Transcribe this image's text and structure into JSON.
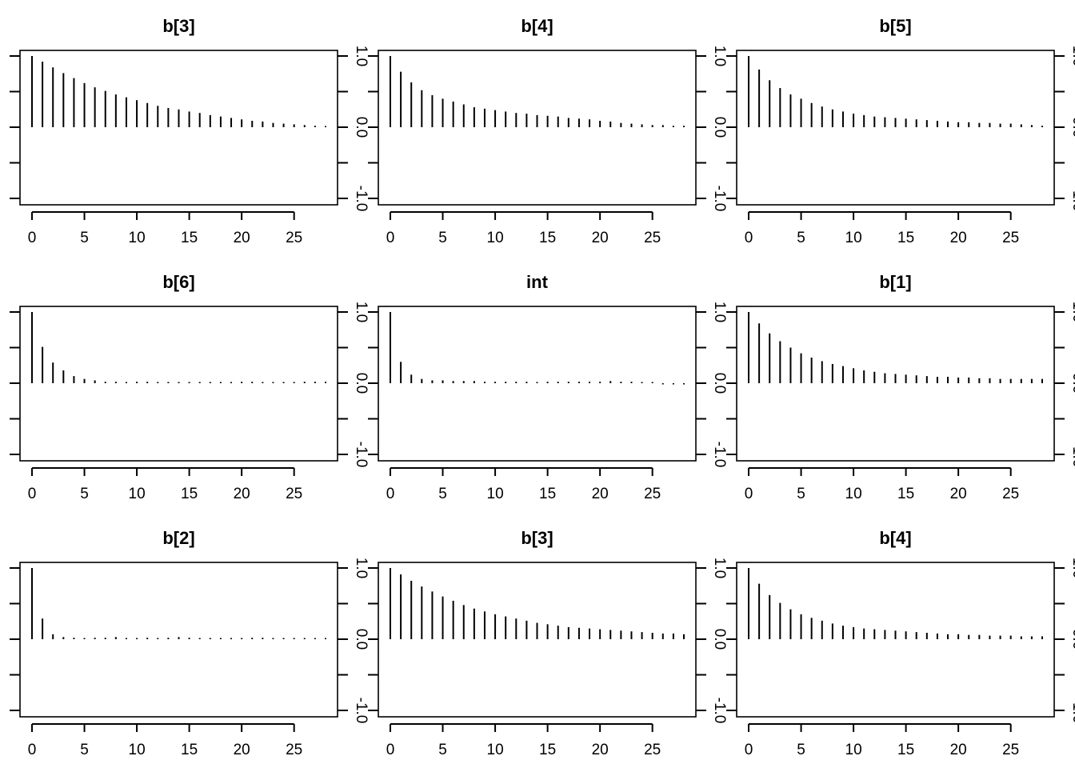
{
  "chart_data": [
    {
      "type": "bar",
      "title": "b[3]",
      "xlim": [
        0,
        28
      ],
      "ylim": [
        -1,
        1
      ],
      "xticks": [
        "0",
        "5",
        "10",
        "15",
        "20",
        "25"
      ],
      "yticks": [
        "-1.0",
        "0.0",
        "1.0"
      ],
      "x": [
        0,
        1,
        2,
        3,
        4,
        5,
        6,
        7,
        8,
        9,
        10,
        11,
        12,
        13,
        14,
        15,
        16,
        17,
        18,
        19,
        20,
        21,
        22,
        23,
        24,
        25,
        26,
        27,
        28
      ],
      "values": [
        1.0,
        0.92,
        0.84,
        0.76,
        0.69,
        0.62,
        0.56,
        0.51,
        0.46,
        0.42,
        0.38,
        0.34,
        0.3,
        0.27,
        0.25,
        0.22,
        0.2,
        0.17,
        0.15,
        0.13,
        0.11,
        0.09,
        0.08,
        0.06,
        0.05,
        0.04,
        0.03,
        0.02,
        0.01
      ]
    },
    {
      "type": "bar",
      "title": "b[4]",
      "xlim": [
        0,
        28
      ],
      "ylim": [
        -1,
        1
      ],
      "xticks": [
        "0",
        "5",
        "10",
        "15",
        "20",
        "25"
      ],
      "yticks": [
        "-1.0",
        "0.0",
        "1.0"
      ],
      "x": [
        0,
        1,
        2,
        3,
        4,
        5,
        6,
        7,
        8,
        9,
        10,
        11,
        12,
        13,
        14,
        15,
        16,
        17,
        18,
        19,
        20,
        21,
        22,
        23,
        24,
        25,
        26,
        27,
        28
      ],
      "values": [
        1.0,
        0.78,
        0.63,
        0.52,
        0.45,
        0.4,
        0.36,
        0.32,
        0.28,
        0.26,
        0.24,
        0.22,
        0.2,
        0.19,
        0.17,
        0.16,
        0.15,
        0.13,
        0.12,
        0.11,
        0.09,
        0.08,
        0.06,
        0.05,
        0.04,
        0.03,
        0.03,
        0.02,
        0.02
      ]
    },
    {
      "type": "bar",
      "title": "b[5]",
      "xlim": [
        0,
        28
      ],
      "ylim": [
        -1,
        1
      ],
      "xticks": [
        "0",
        "5",
        "10",
        "15",
        "20",
        "25"
      ],
      "yticks": [
        "-1.0",
        "0.0",
        "1.0"
      ],
      "x": [
        0,
        1,
        2,
        3,
        4,
        5,
        6,
        7,
        8,
        9,
        10,
        11,
        12,
        13,
        14,
        15,
        16,
        17,
        18,
        19,
        20,
        21,
        22,
        23,
        24,
        25,
        26,
        27,
        28
      ],
      "values": [
        1.0,
        0.81,
        0.66,
        0.55,
        0.46,
        0.4,
        0.34,
        0.29,
        0.25,
        0.22,
        0.19,
        0.17,
        0.15,
        0.14,
        0.13,
        0.12,
        0.11,
        0.1,
        0.09,
        0.08,
        0.07,
        0.07,
        0.06,
        0.06,
        0.05,
        0.05,
        0.04,
        0.03,
        0.02
      ]
    },
    {
      "type": "bar",
      "title": "b[6]",
      "xlim": [
        0,
        28
      ],
      "ylim": [
        -1,
        1
      ],
      "xticks": [
        "0",
        "5",
        "10",
        "15",
        "20",
        "25"
      ],
      "yticks": [
        "-1.0",
        "0.0",
        "1.0"
      ],
      "x": [
        0,
        1,
        2,
        3,
        4,
        5,
        6,
        7,
        8,
        9,
        10,
        11,
        12,
        13,
        14,
        15,
        16,
        17,
        18,
        19,
        20,
        21,
        22,
        23,
        24,
        25,
        26,
        27,
        28
      ],
      "values": [
        1.0,
        0.51,
        0.29,
        0.18,
        0.1,
        0.06,
        0.04,
        0.02,
        0.02,
        0.01,
        0.02,
        0.02,
        0.01,
        0.01,
        0.01,
        0.01,
        0.01,
        0.01,
        0.01,
        0.01,
        0.02,
        0.02,
        0.01,
        0.01,
        0.01,
        0.01,
        0.02,
        0.02,
        0.02
      ]
    },
    {
      "type": "bar",
      "title": "int",
      "xlim": [
        0,
        28
      ],
      "ylim": [
        -1,
        1
      ],
      "xticks": [
        "0",
        "5",
        "10",
        "15",
        "20",
        "25"
      ],
      "yticks": [
        "-1.0",
        "0.0",
        "1.0"
      ],
      "x": [
        0,
        1,
        2,
        3,
        4,
        5,
        6,
        7,
        8,
        9,
        10,
        11,
        12,
        13,
        14,
        15,
        16,
        17,
        18,
        19,
        20,
        21,
        22,
        23,
        24,
        25,
        26,
        27,
        28
      ],
      "values": [
        1.0,
        0.3,
        0.12,
        0.06,
        0.04,
        0.04,
        0.03,
        0.03,
        0.03,
        0.02,
        0.02,
        0.02,
        0.02,
        0.02,
        0.01,
        0.02,
        0.02,
        0.02,
        0.02,
        0.02,
        0.02,
        0.03,
        0.02,
        0.02,
        0.01,
        0.0,
        -0.01,
        -0.01,
        -0.01
      ]
    },
    {
      "type": "bar",
      "title": "b[1]",
      "xlim": [
        0,
        28
      ],
      "ylim": [
        -1,
        1
      ],
      "xticks": [
        "0",
        "5",
        "10",
        "15",
        "20",
        "25"
      ],
      "yticks": [
        "-1.0",
        "0.0",
        "1.0"
      ],
      "x": [
        0,
        1,
        2,
        3,
        4,
        5,
        6,
        7,
        8,
        9,
        10,
        11,
        12,
        13,
        14,
        15,
        16,
        17,
        18,
        19,
        20,
        21,
        22,
        23,
        24,
        25,
        26,
        27,
        28
      ],
      "values": [
        1.0,
        0.84,
        0.7,
        0.59,
        0.5,
        0.42,
        0.36,
        0.31,
        0.27,
        0.24,
        0.21,
        0.18,
        0.16,
        0.14,
        0.13,
        0.12,
        0.11,
        0.1,
        0.09,
        0.09,
        0.08,
        0.08,
        0.07,
        0.07,
        0.06,
        0.06,
        0.06,
        0.06,
        0.06
      ]
    },
    {
      "type": "bar",
      "title": "b[2]",
      "xlim": [
        0,
        28
      ],
      "ylim": [
        -1,
        1
      ],
      "xticks": [
        "0",
        "5",
        "10",
        "15",
        "20",
        "25"
      ],
      "yticks": [
        "-1.0",
        "0.0",
        "1.0"
      ],
      "x": [
        0,
        1,
        2,
        3,
        4,
        5,
        6,
        7,
        8,
        9,
        10,
        11,
        12,
        13,
        14,
        15,
        16,
        17,
        18,
        19,
        20,
        21,
        22,
        23,
        24,
        25,
        26,
        27,
        28
      ],
      "values": [
        1.0,
        0.29,
        0.07,
        0.03,
        0.02,
        0.01,
        0.02,
        0.02,
        0.03,
        0.01,
        0.01,
        0.02,
        0.01,
        0.02,
        0.03,
        0.02,
        0.01,
        0.01,
        0.01,
        0.0,
        0.01,
        0.02,
        0.02,
        0.01,
        0.01,
        0.01,
        0.01,
        0.01,
        0.01
      ]
    },
    {
      "type": "bar",
      "title": "b[3]",
      "xlim": [
        0,
        28
      ],
      "ylim": [
        -1,
        1
      ],
      "xticks": [
        "0",
        "5",
        "10",
        "15",
        "20",
        "25"
      ],
      "yticks": [
        "-1.0",
        "0.0",
        "1.0"
      ],
      "x": [
        0,
        1,
        2,
        3,
        4,
        5,
        6,
        7,
        8,
        9,
        10,
        11,
        12,
        13,
        14,
        15,
        16,
        17,
        18,
        19,
        20,
        21,
        22,
        23,
        24,
        25,
        26,
        27,
        28
      ],
      "values": [
        1.0,
        0.91,
        0.82,
        0.74,
        0.67,
        0.6,
        0.54,
        0.48,
        0.43,
        0.39,
        0.35,
        0.32,
        0.29,
        0.26,
        0.23,
        0.21,
        0.19,
        0.17,
        0.16,
        0.15,
        0.14,
        0.13,
        0.12,
        0.11,
        0.1,
        0.09,
        0.08,
        0.08,
        0.07
      ]
    },
    {
      "type": "bar",
      "title": "b[4]",
      "xlim": [
        0,
        28
      ],
      "ylim": [
        -1,
        1
      ],
      "xticks": [
        "0",
        "5",
        "10",
        "15",
        "20",
        "25"
      ],
      "yticks": [
        "-1.0",
        "0.0",
        "1.0"
      ],
      "x": [
        0,
        1,
        2,
        3,
        4,
        5,
        6,
        7,
        8,
        9,
        10,
        11,
        12,
        13,
        14,
        15,
        16,
        17,
        18,
        19,
        20,
        21,
        22,
        23,
        24,
        25,
        26,
        27,
        28
      ],
      "values": [
        1.0,
        0.78,
        0.62,
        0.51,
        0.42,
        0.35,
        0.3,
        0.26,
        0.22,
        0.19,
        0.17,
        0.15,
        0.14,
        0.13,
        0.12,
        0.11,
        0.1,
        0.09,
        0.08,
        0.07,
        0.07,
        0.06,
        0.06,
        0.05,
        0.05,
        0.05,
        0.04,
        0.04,
        0.04
      ]
    }
  ]
}
